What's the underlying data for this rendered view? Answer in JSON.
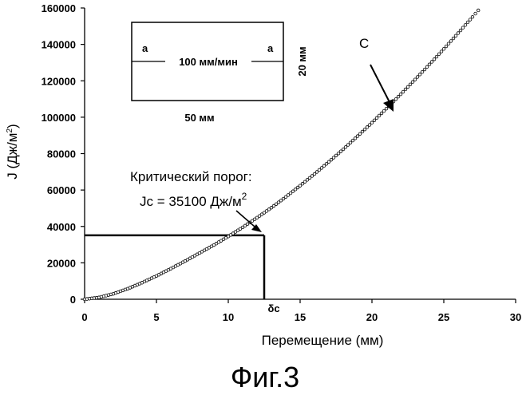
{
  "chart_data": {
    "type": "scatter",
    "title": "",
    "xlabel": "Перемещение (мм)",
    "ylabel": "J (Дж/м",
    "ylabel_sup": "2",
    "ylabel_end": ")",
    "xlim": [
      0,
      30
    ],
    "ylim": [
      0,
      160000
    ],
    "x_ticks": [
      "0",
      "5",
      "10",
      "15",
      "20",
      "25",
      "30"
    ],
    "y_ticks": [
      "0",
      "20000",
      "40000",
      "60000",
      "80000",
      "100000",
      "120000",
      "140000",
      "160000"
    ],
    "grid": false,
    "legend": "none",
    "marker": "open-circle",
    "series": [
      {
        "x": [
          0,
          1,
          2,
          3,
          4,
          5,
          6,
          7,
          8,
          9,
          10,
          11,
          12,
          13,
          14,
          15,
          16,
          17,
          18,
          19,
          20,
          21,
          22,
          23,
          24,
          25,
          26,
          27,
          27.4
        ],
        "values": [
          0,
          1000,
          3000,
          5800,
          9100,
          12800,
          16800,
          21000,
          25400,
          29800,
          34500,
          39500,
          44800,
          50300,
          56200,
          62400,
          68800,
          75500,
          82400,
          89600,
          97000,
          104700,
          112600,
          120700,
          129000,
          137500,
          146200,
          155100,
          158700
        ]
      }
    ],
    "threshold": {
      "x": 12.5,
      "y": 35100
    },
    "annotations": {
      "curve_label": "C",
      "threshold_title": "Критический порог:",
      "threshold_value": "Jc = 35100 Дж/м",
      "threshold_value_sup": "2",
      "x_marker": "δc"
    },
    "inset": {
      "notch_left": "a",
      "notch_right": "a",
      "speed": "100 мм/мин",
      "height": "20 мм",
      "width": "50 мм"
    }
  },
  "caption": "Фиг.3"
}
